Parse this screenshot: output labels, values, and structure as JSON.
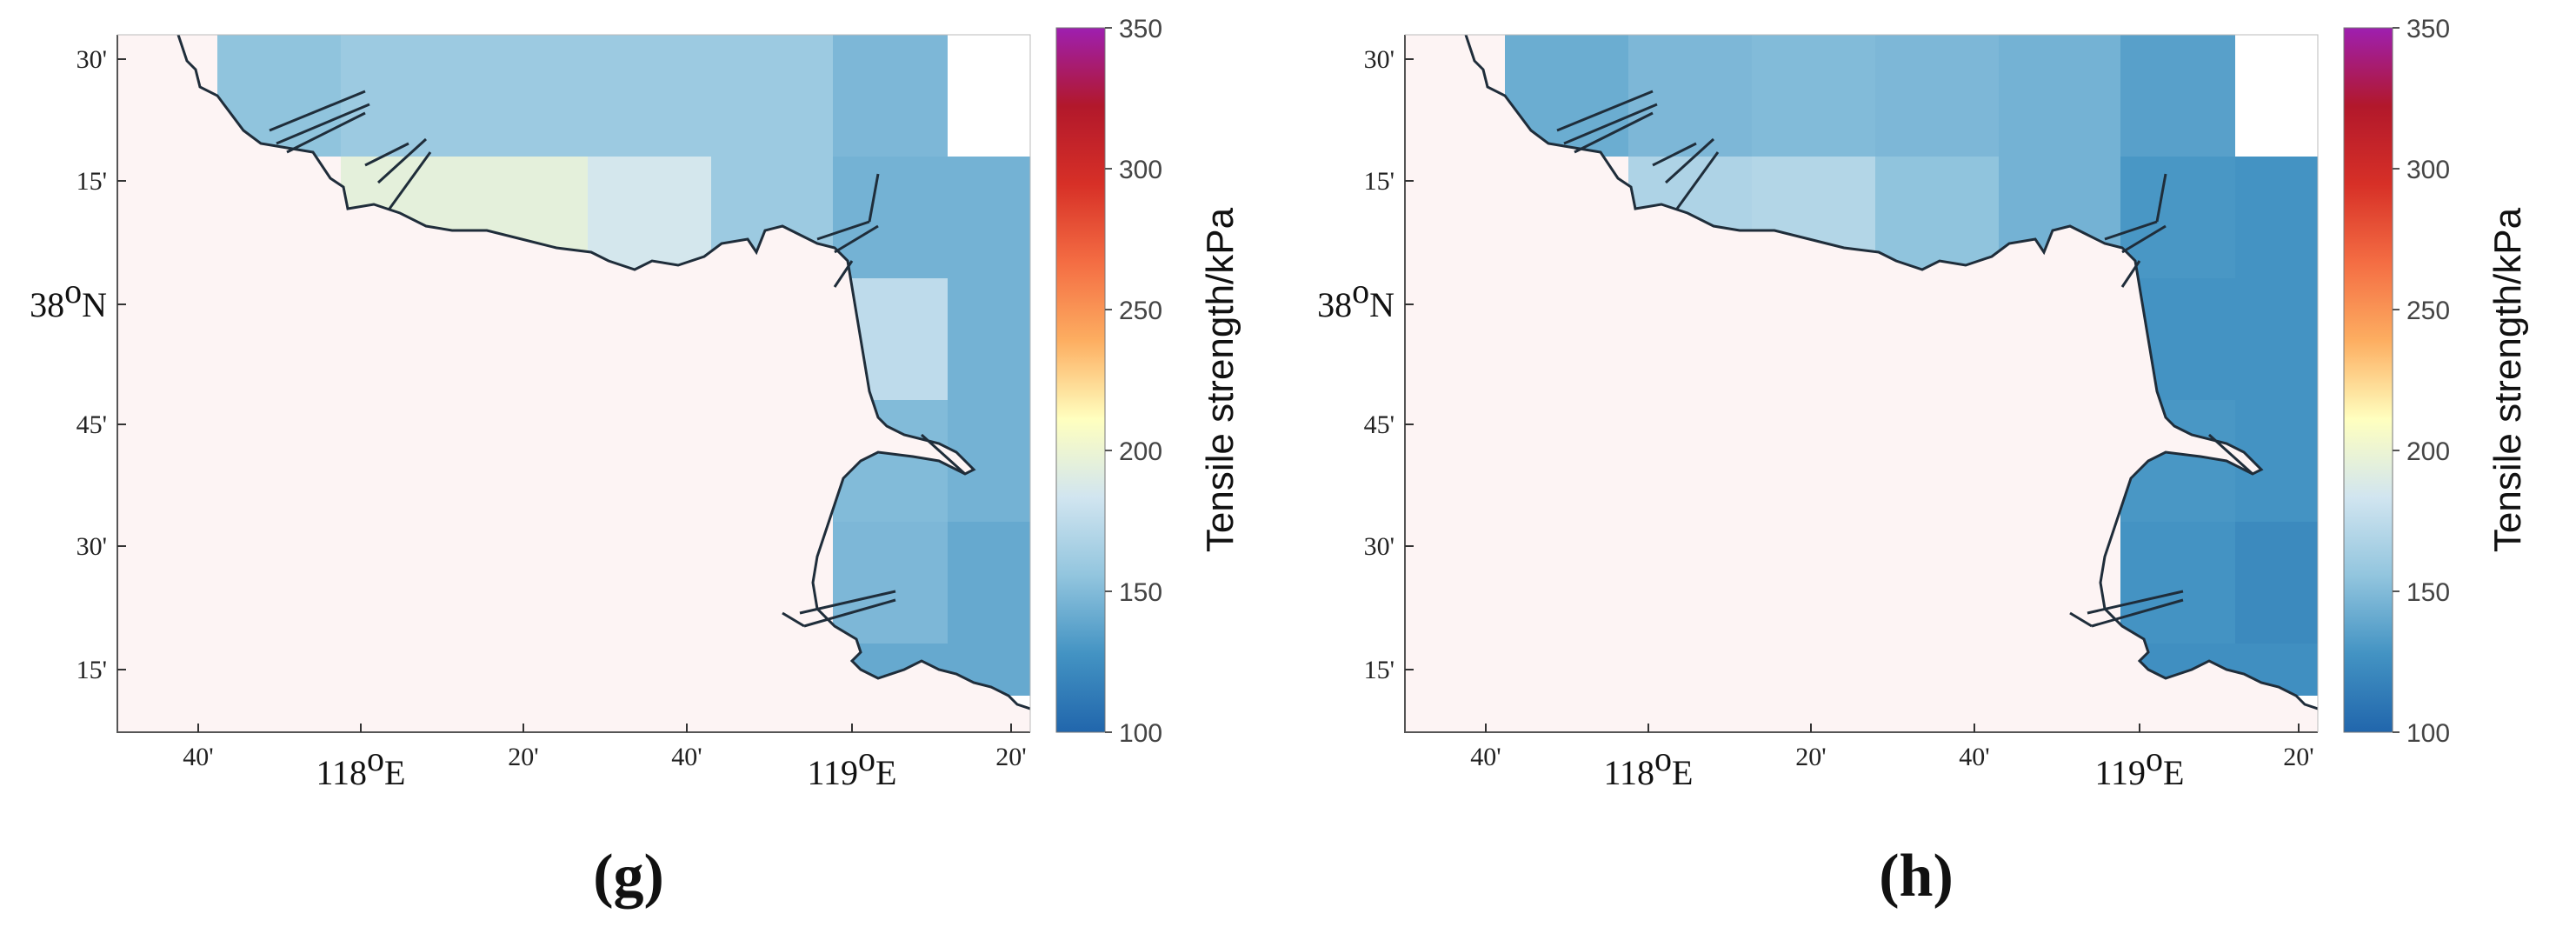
{
  "panels": [
    {
      "id": "g",
      "label": "(g)",
      "lat_ticks": [
        "30'",
        "15'",
        "38",
        "45'",
        "30'",
        "15'"
      ],
      "lat_main_suffix": "N",
      "lon_ticks": [
        "40'",
        "118",
        "20'",
        "40'",
        "119",
        "20'"
      ],
      "lon_main_suffix": "E",
      "cells": [
        {
          "row": 0,
          "col": 0,
          "value": 155
        },
        {
          "row": 0,
          "col": 1,
          "value": 160
        },
        {
          "row": 0,
          "col": 2,
          "value": 160
        },
        {
          "row": 0,
          "col": 3,
          "value": 160
        },
        {
          "row": 0,
          "col": 4,
          "value": 160
        },
        {
          "row": 0,
          "col": 5,
          "value": 148
        },
        {
          "row": 1,
          "col": 1,
          "value": 195
        },
        {
          "row": 1,
          "col": 2,
          "value": 195
        },
        {
          "row": 1,
          "col": 3,
          "value": 185
        },
        {
          "row": 1,
          "col": 4,
          "value": 160
        },
        {
          "row": 1,
          "col": 5,
          "value": 145
        },
        {
          "row": 1,
          "col": 6,
          "value": 145
        },
        {
          "row": 2,
          "col": 5,
          "value": 175
        },
        {
          "row": 2,
          "col": 6,
          "value": 145
        },
        {
          "row": 3,
          "col": 5,
          "value": 150
        },
        {
          "row": 3,
          "col": 6,
          "value": 145
        },
        {
          "row": 4,
          "col": 5,
          "value": 148
        },
        {
          "row": 4,
          "col": 6,
          "value": 140
        },
        {
          "row": 5,
          "col": 5,
          "value": 140
        },
        {
          "row": 5,
          "col": 6,
          "value": 140
        }
      ]
    },
    {
      "id": "h",
      "label": "(h)",
      "lat_ticks": [
        "30'",
        "15'",
        "38",
        "45'",
        "30'",
        "15'"
      ],
      "lat_main_suffix": "N",
      "lon_ticks": [
        "40'",
        "118",
        "20'",
        "40'",
        "119",
        "20'"
      ],
      "lon_main_suffix": "E",
      "cells": [
        {
          "row": 0,
          "col": 0,
          "value": 142
        },
        {
          "row": 0,
          "col": 1,
          "value": 148
        },
        {
          "row": 0,
          "col": 2,
          "value": 150
        },
        {
          "row": 0,
          "col": 3,
          "value": 148
        },
        {
          "row": 0,
          "col": 4,
          "value": 145
        },
        {
          "row": 0,
          "col": 5,
          "value": 135
        },
        {
          "row": 1,
          "col": 1,
          "value": 168
        },
        {
          "row": 1,
          "col": 2,
          "value": 170
        },
        {
          "row": 1,
          "col": 3,
          "value": 155
        },
        {
          "row": 1,
          "col": 4,
          "value": 145
        },
        {
          "row": 1,
          "col": 5,
          "value": 130
        },
        {
          "row": 1,
          "col": 6,
          "value": 128
        },
        {
          "row": 2,
          "col": 5,
          "value": 128
        },
        {
          "row": 2,
          "col": 6,
          "value": 128
        },
        {
          "row": 3,
          "col": 5,
          "value": 130
        },
        {
          "row": 3,
          "col": 6,
          "value": 128
        },
        {
          "row": 4,
          "col": 5,
          "value": 128
        },
        {
          "row": 4,
          "col": 6,
          "value": 122
        },
        {
          "row": 5,
          "col": 5,
          "value": 125
        },
        {
          "row": 5,
          "col": 6,
          "value": 125
        }
      ]
    }
  ],
  "colorbar": {
    "title": "Tensile strength/kPa",
    "ticks": [
      "350",
      "300",
      "250",
      "200",
      "150",
      "100"
    ],
    "min": 100,
    "max": 350,
    "stops": [
      "#2166ac",
      "#4393c3",
      "#92c5de",
      "#d1e5f0",
      "#ffffbf",
      "#fdae61",
      "#f46d43",
      "#d73027",
      "#b2182b",
      "#9e1fb0"
    ]
  },
  "colors": {
    "land": "#fdf4f4",
    "coast": "#1f2d3a",
    "frame": "#555555"
  }
}
